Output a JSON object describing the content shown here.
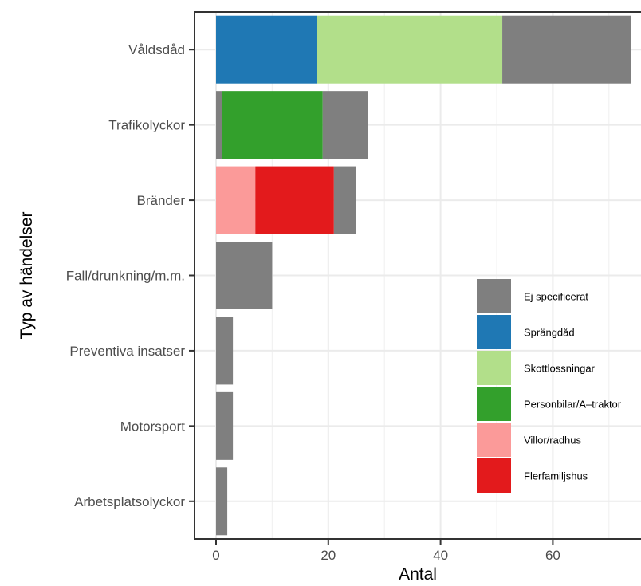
{
  "chart_data": {
    "type": "bar",
    "orientation": "horizontal",
    "stacked": true,
    "xlabel": "Antal",
    "ylabel": "Typ av händelser",
    "xlim": [
      -4,
      75
    ],
    "x_ticks": [
      0,
      20,
      40,
      60
    ],
    "grid": true,
    "legend_position": "inside-right",
    "categories": [
      "Våldsdåd",
      "Trafikolyckor",
      "Bränder",
      "Fall/drunkning/m.m.",
      "Preventiva insatser",
      "Motorsport",
      "Arbetsplatsolyckor"
    ],
    "series": [
      {
        "name": "Sprängdåd",
        "color": "#1f78b4",
        "values": [
          18,
          0,
          0,
          0,
          0,
          0,
          0
        ]
      },
      {
        "name": "Skottlossningar",
        "color": "#b2df8a",
        "values": [
          33,
          0,
          0,
          0,
          0,
          0,
          0
        ]
      },
      {
        "name": "Personbilar/A–traktor",
        "color": "#33a02c",
        "values": [
          0,
          18,
          0,
          0,
          0,
          0,
          0
        ]
      },
      {
        "name": "Villor/radhus",
        "color": "#fb9a99",
        "values": [
          0,
          0,
          7,
          0,
          0,
          0,
          0
        ]
      },
      {
        "name": "Flerfamiljshus",
        "color": "#e31a1c",
        "values": [
          0,
          0,
          14,
          0,
          0,
          0,
          0
        ]
      },
      {
        "name": "Ej specificerat",
        "color": "#7f7f7f",
        "values": [
          23,
          9,
          4,
          10,
          3,
          3,
          2
        ]
      }
    ],
    "stack_segments": [
      [
        [
          "Sprängdåd",
          0,
          18
        ],
        [
          "Skottlossningar",
          18,
          51
        ],
        [
          "Ej specificerat",
          51,
          74
        ]
      ],
      [
        [
          "Ej specificerat",
          0,
          1
        ],
        [
          "Personbilar/A–traktor",
          1,
          19
        ],
        [
          "Ej specificerat",
          19,
          27
        ]
      ],
      [
        [
          "Villor/radhus",
          0,
          7
        ],
        [
          "Flerfamiljshus",
          7,
          21
        ],
        [
          "Ej specificerat",
          21,
          25
        ]
      ],
      [
        [
          "Ej specificerat",
          0,
          10
        ]
      ],
      [
        [
          "Ej specificerat",
          0,
          3
        ]
      ],
      [
        [
          "Ej specificerat",
          0,
          3
        ]
      ],
      [
        [
          "Ej specificerat",
          0,
          2
        ]
      ]
    ],
    "legend_order": [
      "Ej specificerat",
      "Sprängdåd",
      "Skottlossningar",
      "Personbilar/A–traktor",
      "Villor/radhus",
      "Flerfamiljshus"
    ]
  }
}
